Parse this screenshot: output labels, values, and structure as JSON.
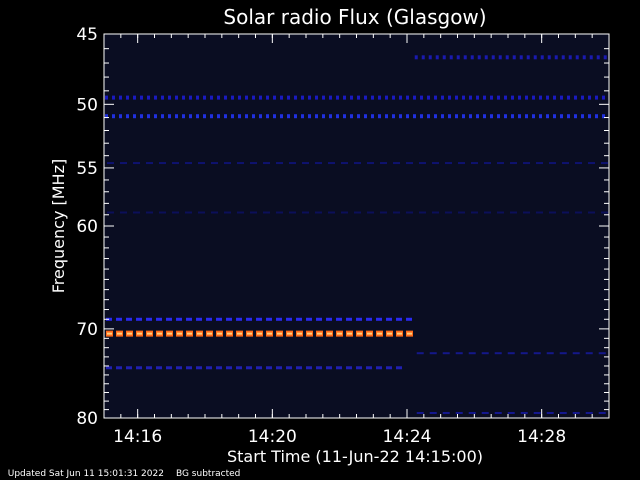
{
  "chart_data": {
    "type": "heatmap",
    "title": "Solar radio Flux (Glasgow)",
    "xlabel": "Start Time (11-Jun-22 14:15:00)",
    "ylabel": "Frequency [MHz]",
    "x_ticks": [
      "14:16",
      "14:20",
      "14:24",
      "14:28"
    ],
    "x_tick_minutes": [
      1,
      5,
      9,
      13
    ],
    "x_range_minutes": [
      0,
      15
    ],
    "y_ticks": [
      45,
      50,
      55,
      60,
      70,
      80
    ],
    "y_range": [
      45,
      80
    ],
    "y_scale": "log",
    "background_color": "#0a0d22",
    "features": [
      {
        "freq": 70.5,
        "start": 0,
        "end": 9.2,
        "color": "#ff6a1a",
        "kind": "strong"
      },
      {
        "freq": 69.0,
        "start": 0,
        "end": 9.2,
        "color": "#2a2af0",
        "kind": "dashed"
      },
      {
        "freq": 74.2,
        "start": 0,
        "end": 9.0,
        "color": "#2020b0",
        "kind": "dashed"
      },
      {
        "freq": 50.9,
        "start": 0,
        "end": 15,
        "color": "#2030e0",
        "kind": "band"
      },
      {
        "freq": 49.5,
        "start": 0,
        "end": 15,
        "color": "#1a1ac0",
        "kind": "band"
      },
      {
        "freq": 46.6,
        "start": 9.2,
        "end": 15,
        "color": "#1a1ab0",
        "kind": "band"
      },
      {
        "freq": 54.6,
        "start": 0,
        "end": 15,
        "color": "#0e1270",
        "kind": "faint"
      },
      {
        "freq": 58.8,
        "start": 0,
        "end": 15,
        "color": "#0c0f5a",
        "kind": "faint"
      },
      {
        "freq": 72.6,
        "start": 9.2,
        "end": 15,
        "color": "#14188a",
        "kind": "faint"
      },
      {
        "freq": 79.4,
        "start": 9.2,
        "end": 15,
        "color": "#141890",
        "kind": "faint"
      }
    ]
  },
  "footer": {
    "updated": "Updated Sat Jun 11 15:01:31 2022",
    "note": "BG subtracted"
  }
}
